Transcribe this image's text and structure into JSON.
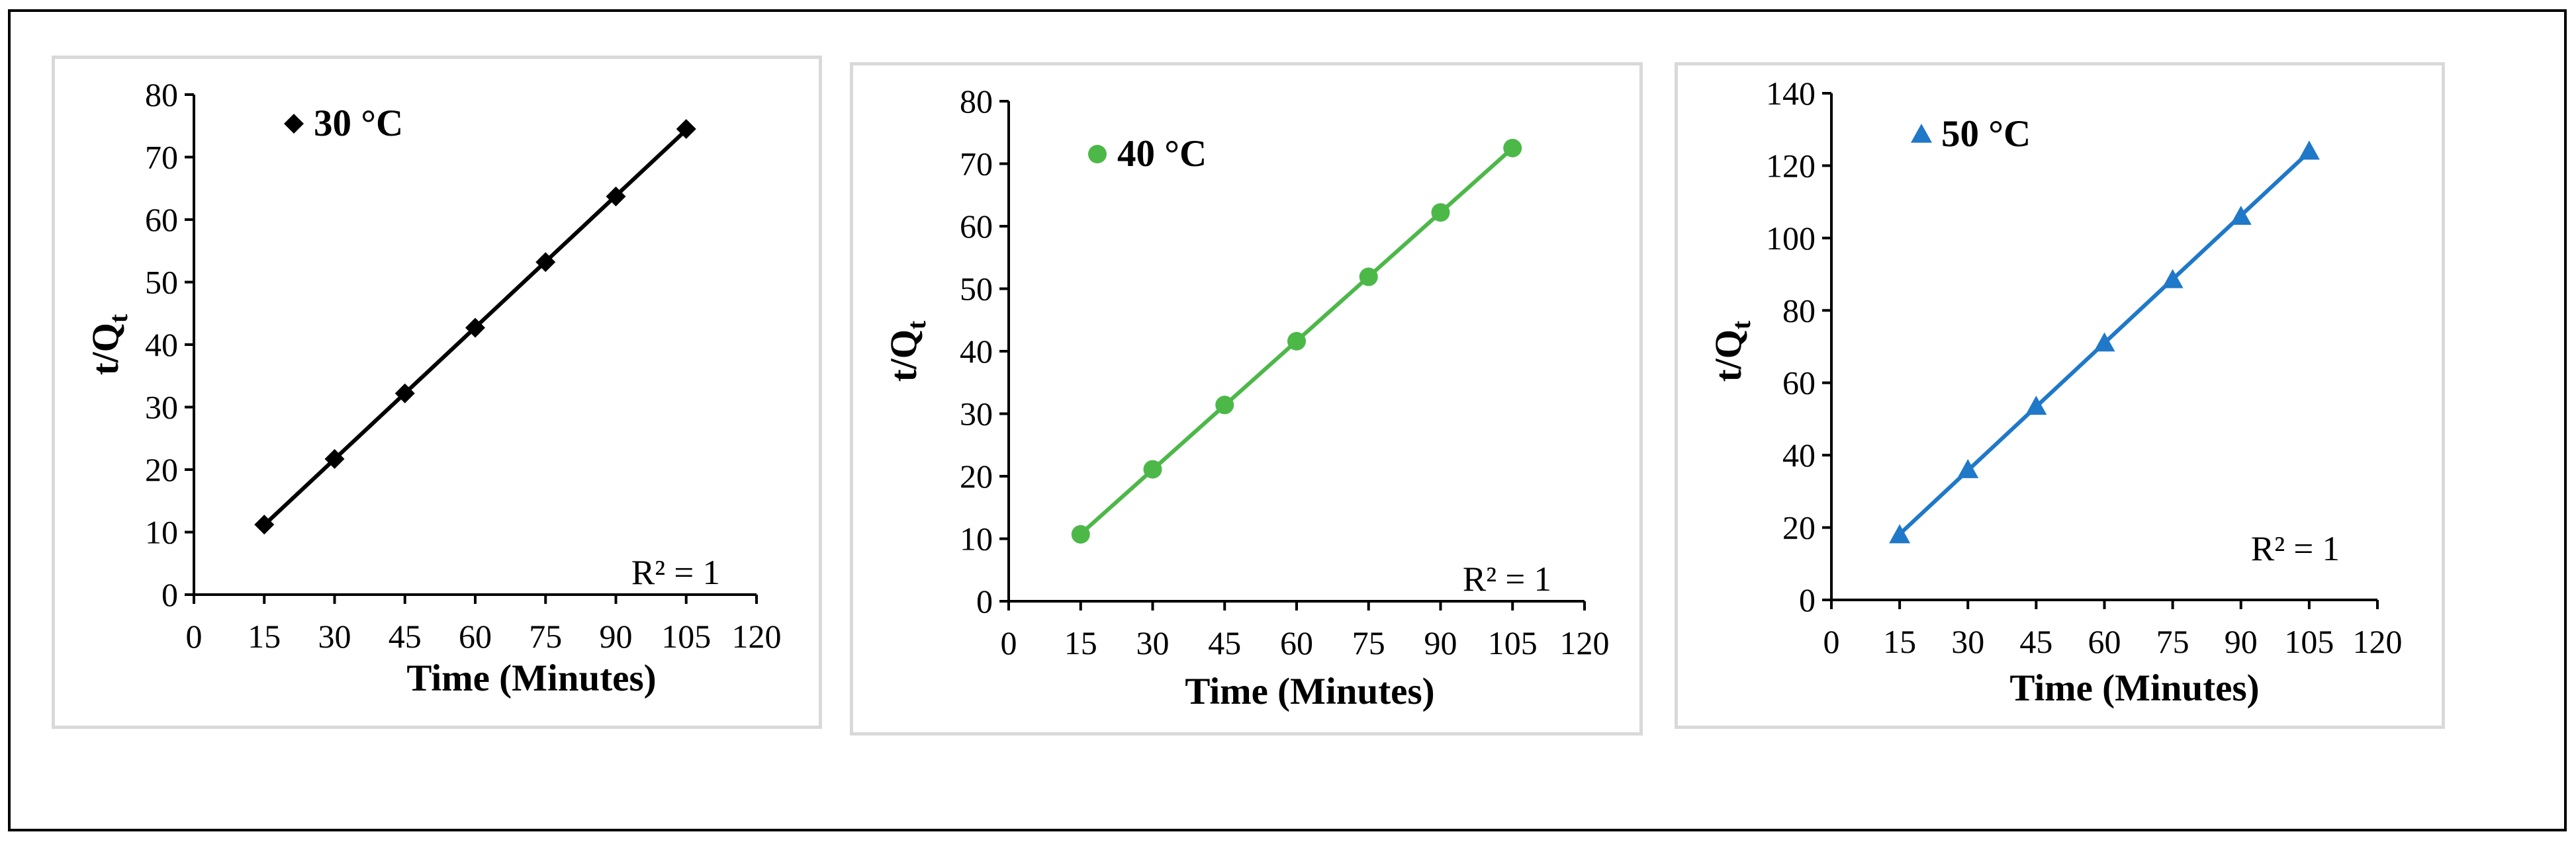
{
  "chart_data": [
    {
      "type": "scatter",
      "xlabel": "Time (Minutes)",
      "ylabel_main": "t/Q",
      "ylabel_sub": "t",
      "x_ticks": [
        0,
        15,
        30,
        45,
        60,
        75,
        90,
        105,
        120
      ],
      "y_ticks": [
        0,
        10,
        20,
        30,
        40,
        50,
        60,
        70,
        80
      ],
      "xlim": [
        0,
        120
      ],
      "ylim": [
        0,
        80
      ],
      "annotation": "R² = 1",
      "series": [
        {
          "name": "30 °C",
          "marker": "diamond",
          "color": "#000000",
          "trendline": "linear",
          "x": [
            15,
            30,
            45,
            60,
            75,
            90,
            105
          ],
          "y": [
            11.2,
            21.7,
            32.2,
            42.7,
            53.2,
            63.7,
            74.5
          ]
        }
      ]
    },
    {
      "type": "scatter",
      "xlabel": "Time (Minutes)",
      "ylabel_main": "t/Q",
      "ylabel_sub": "t",
      "x_ticks": [
        0,
        15,
        30,
        45,
        60,
        75,
        90,
        105,
        120
      ],
      "y_ticks": [
        0,
        10,
        20,
        30,
        40,
        50,
        60,
        70,
        80
      ],
      "xlim": [
        0,
        120
      ],
      "ylim": [
        0,
        80
      ],
      "annotation": "R² = 1",
      "series": [
        {
          "name": "40 °C",
          "marker": "circle",
          "color": "#4cb848",
          "trendline": "linear",
          "x": [
            15,
            30,
            45,
            60,
            75,
            90,
            105
          ],
          "y": [
            10.7,
            21.1,
            31.4,
            41.6,
            51.9,
            62.2,
            72.5
          ]
        }
      ]
    },
    {
      "type": "scatter",
      "xlabel": "Time (Minutes)",
      "ylabel_main": "t/Q",
      "ylabel_sub": "t",
      "x_ticks": [
        0,
        15,
        30,
        45,
        60,
        75,
        90,
        105,
        120
      ],
      "y_ticks": [
        0,
        20,
        40,
        60,
        80,
        100,
        120,
        140
      ],
      "xlim": [
        0,
        120
      ],
      "ylim": [
        0,
        140
      ],
      "annotation": "R² = 1",
      "series": [
        {
          "name": "50 °C",
          "marker": "triangle",
          "color": "#1f78c8",
          "trendline": "linear",
          "x": [
            15,
            30,
            45,
            60,
            75,
            90,
            105
          ],
          "y": [
            18,
            36,
            53.5,
            71,
            88.5,
            106,
            124
          ]
        }
      ]
    }
  ]
}
